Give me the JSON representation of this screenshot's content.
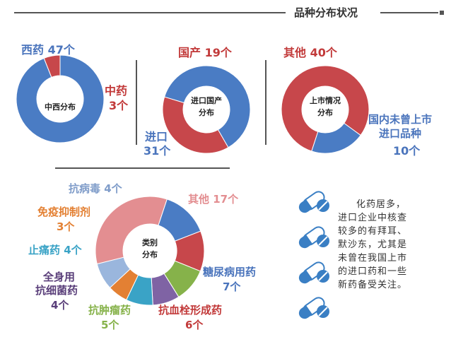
{
  "header": {
    "title": "品种分布状况"
  },
  "colors": {
    "blue": "#4a7cc4",
    "red": "#c7474b",
    "pink": "#e38e91",
    "orange": "#e38033",
    "teal": "#3aa3c6",
    "purple": "#7f63a4",
    "green": "#86b24a",
    "label_blue": "#4a74bc",
    "label_red": "#c23a3a",
    "pill_blue": "#3a7fc4"
  },
  "chart_data": [
    {
      "type": "pie",
      "center_label": [
        "中西分布"
      ],
      "slices": [
        {
          "label": "西药",
          "value": 47,
          "unit": "个",
          "color": "#4a7cc4"
        },
        {
          "label": "中药",
          "value": 3,
          "unit": "个",
          "color": "#c7474b"
        }
      ]
    },
    {
      "type": "pie",
      "center_label": [
        "进口国产",
        "分布"
      ],
      "slices": [
        {
          "label": "国产",
          "value": 19,
          "unit": "个",
          "color": "#c7474b"
        },
        {
          "label": "进口",
          "value": 31,
          "unit": "个",
          "color": "#4a7cc4"
        }
      ]
    },
    {
      "type": "pie",
      "center_label": [
        "上市情况",
        "分布"
      ],
      "slices": [
        {
          "label": "其他",
          "value": 40,
          "unit": "个",
          "color": "#c7474b"
        },
        {
          "label": "国内未曾上市进口品种",
          "value": 10,
          "unit": "个",
          "color": "#4a7cc4"
        }
      ]
    },
    {
      "type": "pie",
      "center_label": [
        "类别",
        "分布"
      ],
      "slices": [
        {
          "label": "其他",
          "value": 17,
          "unit": "个",
          "color": "#e38e91"
        },
        {
          "label": "糖尿病用药",
          "value": 7,
          "unit": "个",
          "color": "#4a7cc4"
        },
        {
          "label": "抗血栓形成药",
          "value": 6,
          "unit": "个",
          "color": "#c7474b"
        },
        {
          "label": "抗肿瘤药",
          "value": 5,
          "unit": "个",
          "color": "#86b24a"
        },
        {
          "label": "全身用抗细菌药",
          "value": 4,
          "unit": "个",
          "color": "#7f63a4"
        },
        {
          "label": "止痛药",
          "value": 4,
          "unit": "个",
          "color": "#3aa3c6"
        },
        {
          "label": "免疫抑制剂",
          "value": 3,
          "unit": "个",
          "color": "#e38033"
        },
        {
          "label": "抗病毒",
          "value": 4,
          "unit": "个",
          "color": "#9ab6dd"
        }
      ]
    }
  ],
  "note": {
    "lines": [
      "化药居多，",
      "进口企业中核查",
      "较多的有拜耳、",
      "默沙东，尤其是",
      "未曾在我国上市",
      "的进口药和一些",
      "新药备受关注。"
    ]
  },
  "labels": {
    "d1_xiyao": "西药 47个",
    "d1_zhongyao_1": "中药",
    "d1_zhongyao_2": "3个",
    "d2_guochan": "国产 19个",
    "d2_jinkou_1": "进口",
    "d2_jinkou_2": "31个",
    "d3_qita": "其他 40个",
    "d3_weizeng_1": "国内未曾上市",
    "d3_weizeng_2": "进口品种",
    "d3_weizeng_3": "10个",
    "d4_qita": "其他 17个",
    "d4_tangniao_1": "糖尿病用药",
    "d4_tangniao_2": "7个",
    "d4_kangxue_1": "抗血栓形成药",
    "d4_kangxue_2": "6个",
    "d4_kangzhong_1": "抗肿瘤药",
    "d4_kangzhong_2": "5个",
    "d4_kangjun_1": "全身用",
    "d4_kangjun_2": "抗细菌药",
    "d4_kangjun_3": "4个",
    "d4_zhitong": "止痛药 4个",
    "d4_mianyi_1": "免疫抑制剂",
    "d4_mianyi_2": "3个",
    "d4_kangbing": "抗病毒 4个"
  }
}
